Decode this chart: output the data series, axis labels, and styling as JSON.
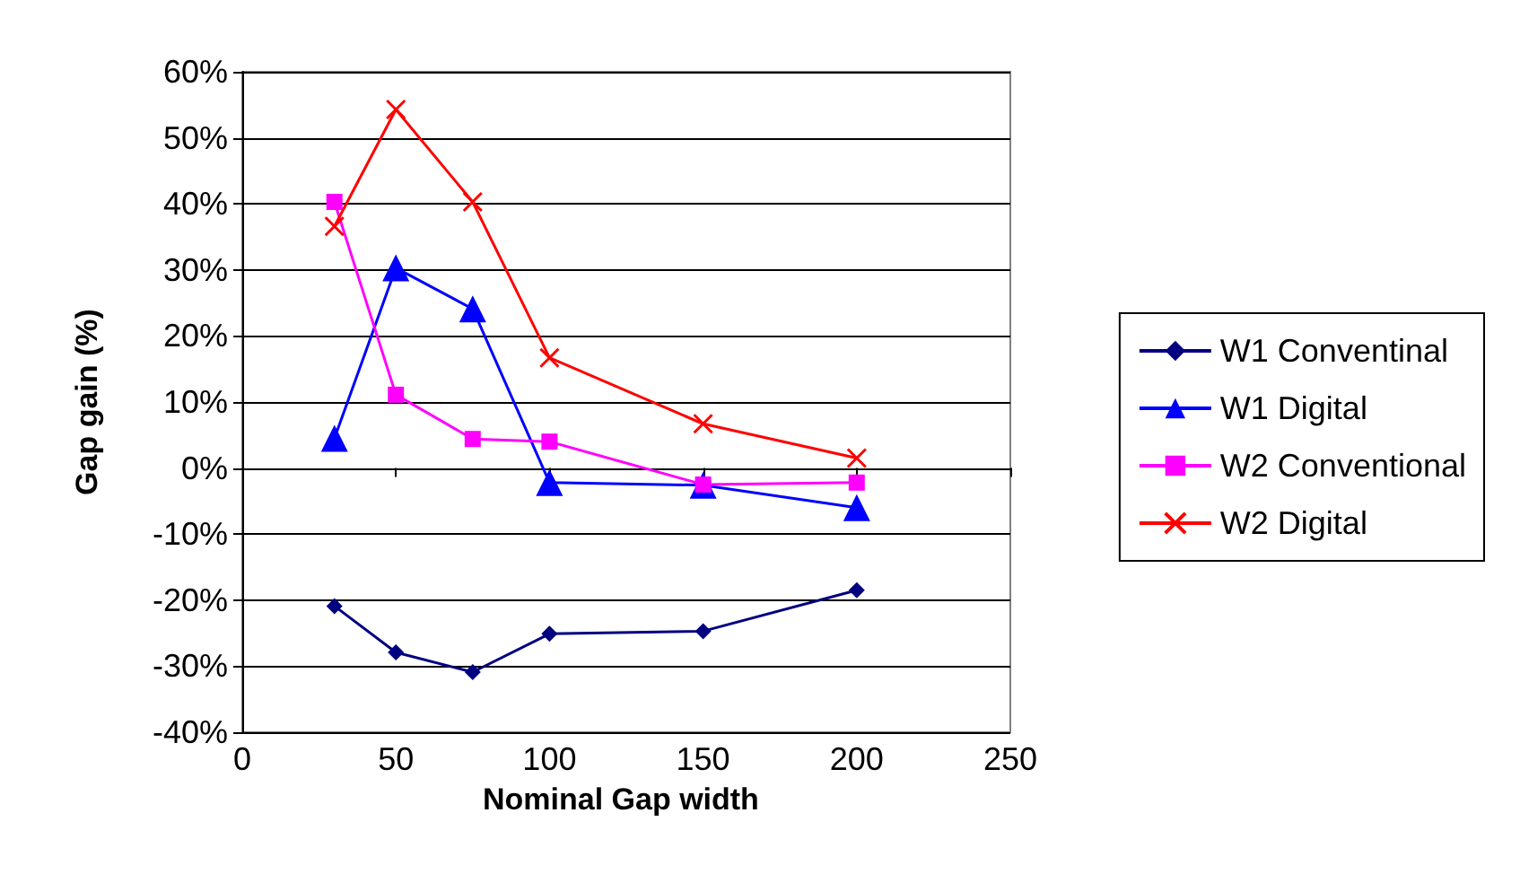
{
  "chart_data": {
    "type": "line",
    "xlabel": "Nominal Gap width",
    "ylabel": "Gap gain (%)",
    "x": [
      30,
      50,
      75,
      100,
      150,
      200
    ],
    "xlim": [
      0,
      250
    ],
    "xticks": [
      0,
      50,
      100,
      150,
      200,
      250
    ],
    "ylim": [
      -40,
      60
    ],
    "yticks": [
      {
        "value": -40,
        "label": "-40%"
      },
      {
        "value": -30,
        "label": "-30%"
      },
      {
        "value": -20,
        "label": "-20%"
      },
      {
        "value": -10,
        "label": "-10%"
      },
      {
        "value": 0,
        "label": "0%"
      },
      {
        "value": 10,
        "label": "10%"
      },
      {
        "value": 20,
        "label": "20%"
      },
      {
        "value": 30,
        "label": "30%"
      },
      {
        "value": 40,
        "label": "40%"
      },
      {
        "value": 50,
        "label": "50%"
      },
      {
        "value": 60,
        "label": "60%"
      }
    ],
    "grid": "y",
    "legend": "right",
    "series": [
      {
        "name": "W1 Conventinal",
        "color": "#000080",
        "marker": "diamond",
        "values": [
          -20.9,
          -27.9,
          -30.9,
          -25.1,
          -24.7,
          -18.5
        ]
      },
      {
        "name": "W1 Digital",
        "color": "#0000ff",
        "marker": "triangle",
        "values": [
          4.5,
          30.3,
          24.1,
          -2.2,
          -2.6,
          -6.0
        ]
      },
      {
        "name": "W2 Conventional",
        "color": "#ff00ff",
        "marker": "square",
        "values": [
          40.3,
          11.1,
          4.4,
          4.0,
          -2.5,
          -2.2
        ]
      },
      {
        "name": "W2 Digital",
        "color": "#ff0000",
        "marker": "cross",
        "values": [
          36.6,
          54.3,
          40.3,
          16.7,
          6.7,
          1.5
        ]
      }
    ]
  }
}
